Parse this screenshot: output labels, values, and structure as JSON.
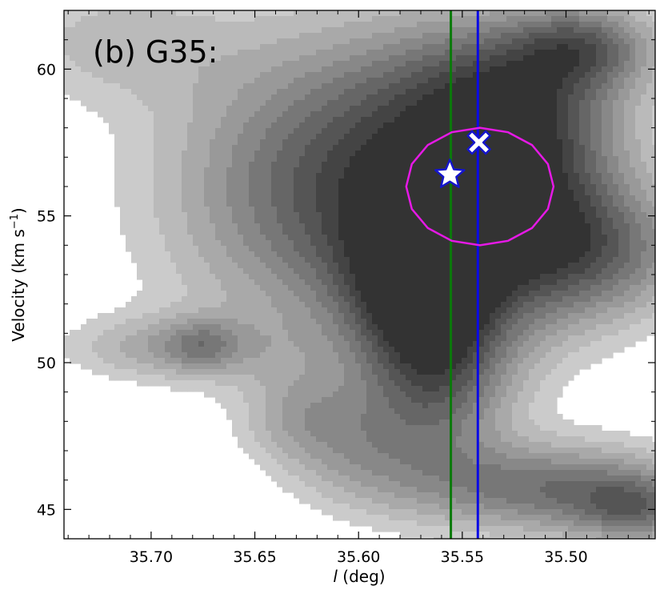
{
  "chart_data": {
    "type": "contour",
    "panel_label": "(b) G35:",
    "xlabel": {
      "italic": "l",
      "rest": " (deg)"
    },
    "ylabel": {
      "main": "Velocity (km s",
      "sup": "−1",
      "close": ")"
    },
    "xlim": [
      35.742,
      35.457
    ],
    "ylim": [
      44.0,
      62.0
    ],
    "x_ticks": [
      35.7,
      35.65,
      35.6,
      35.55,
      35.5
    ],
    "x_tick_labels": [
      "35.70",
      "35.65",
      "35.60",
      "35.55",
      "35.50"
    ],
    "y_ticks": [
      45,
      50,
      55,
      60
    ],
    "y_tick_labels": [
      "45",
      "50",
      "55",
      "60"
    ],
    "grayscale_levels": [
      "#cbcbcb",
      "#bababa",
      "#a9a9a9",
      "#999999",
      "#888888",
      "#777777",
      "#666666",
      "#555555",
      "#444444",
      "#333333"
    ],
    "blobs": [
      {
        "l": 35.6,
        "v": 56.0,
        "sl": 0.06,
        "sv": 3.6,
        "a": 0.8
      },
      {
        "l": 35.57,
        "v": 52.8,
        "sl": 0.025,
        "sv": 2.2,
        "a": 0.65
      },
      {
        "l": 35.515,
        "v": 55.2,
        "sl": 0.03,
        "sv": 2.8,
        "a": 0.5
      },
      {
        "l": 35.53,
        "v": 59.0,
        "sl": 0.04,
        "sv": 2.0,
        "a": 0.55
      },
      {
        "l": 35.56,
        "v": 49.5,
        "sl": 0.025,
        "sv": 2.5,
        "a": 0.5
      },
      {
        "l": 35.49,
        "v": 60.8,
        "sl": 0.025,
        "sv": 1.0,
        "a": 0.5
      },
      {
        "l": 35.48,
        "v": 53.8,
        "sl": 0.035,
        "sv": 1.6,
        "a": 0.45
      },
      {
        "l": 35.69,
        "v": 50.5,
        "sl": 0.035,
        "sv": 0.8,
        "a": 0.32
      },
      {
        "l": 35.675,
        "v": 50.6,
        "sl": 0.012,
        "sv": 0.6,
        "a": 0.22
      },
      {
        "l": 35.49,
        "v": 45.6,
        "sl": 0.04,
        "sv": 1.2,
        "a": 0.42
      },
      {
        "l": 35.465,
        "v": 45.0,
        "sl": 0.02,
        "sv": 0.8,
        "a": 0.38
      },
      {
        "l": 35.53,
        "v": 45.8,
        "sl": 0.04,
        "sv": 1.0,
        "a": 0.25
      },
      {
        "l": 35.63,
        "v": 48.2,
        "sl": 0.02,
        "sv": 1.2,
        "a": 0.25
      },
      {
        "l": 35.72,
        "v": 61.0,
        "sl": 0.04,
        "sv": 1.5,
        "a": 0.22
      },
      {
        "l": 35.6,
        "v": 47.0,
        "sl": 0.025,
        "sv": 1.5,
        "a": 0.3
      }
    ],
    "green_line_l": 35.5555,
    "blue_line_l": 35.5425,
    "magenta_ellipse": {
      "l_center": 35.5415,
      "v_center": 56.0,
      "l_halfwidth": 0.0355,
      "v_halfwidth": 2.0
    },
    "star_marker": {
      "l": 35.556,
      "v": 56.4
    },
    "x_marker": {
      "l": 35.542,
      "v": 57.5
    },
    "colors": {
      "green_line": "#0a7a0a",
      "blue_line": "#0a0ae6",
      "magenta": "#e619e6",
      "marker_edge": "#1515cc",
      "marker_fill": "#ffffff"
    }
  }
}
